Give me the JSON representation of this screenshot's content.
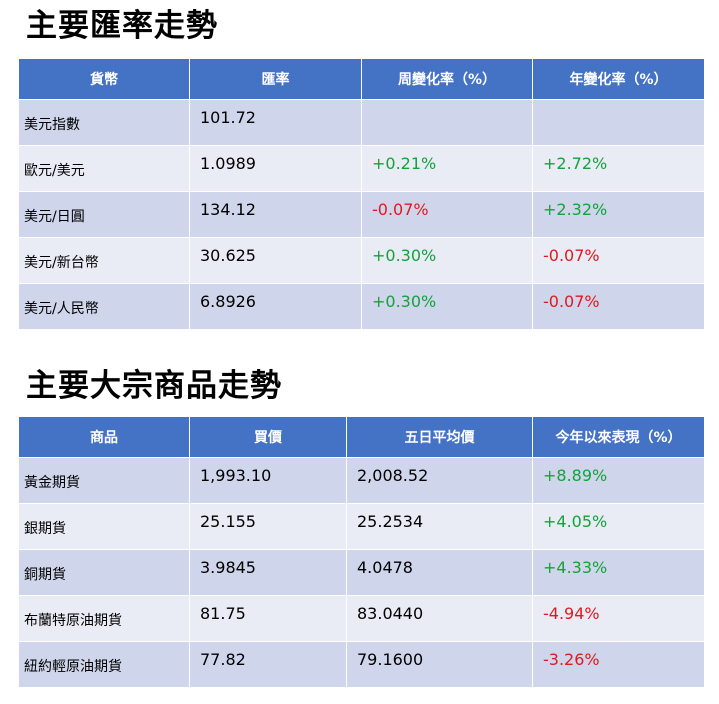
{
  "fx": {
    "title": "主要匯率走勢",
    "headers": [
      "貨幣",
      "匯率",
      "周變化率（%）",
      "年變化率（%）"
    ],
    "rows": [
      {
        "name": "美元指數",
        "rate": "101.72",
        "weekly": "",
        "yearly": ""
      },
      {
        "name": "歐元/美元",
        "rate": "1.0989",
        "weekly": "+0.21%",
        "yearly": "+2.72%"
      },
      {
        "name": "美元/日圓",
        "rate": "134.12",
        "weekly": "-0.07%",
        "yearly": "+2.32%"
      },
      {
        "name": "美元/新台幣",
        "rate": "30.625",
        "weekly": "+0.30%",
        "yearly": "-0.07%"
      },
      {
        "name": "美元/人民幣",
        "rate": "6.8926",
        "weekly": "+0.30%",
        "yearly": "-0.07%"
      }
    ]
  },
  "commodities": {
    "title": "主要大宗商品走勢",
    "headers": [
      "商品",
      "買價",
      "五日平均價",
      "今年以來表現（%）"
    ],
    "rows": [
      {
        "name": "黃金期貨",
        "price": "1,993.10",
        "avg5": "2,008.52",
        "ytd": "+8.89%"
      },
      {
        "name": "銀期貨",
        "price": "25.155",
        "avg5": "25.2534",
        "ytd": "+4.05%"
      },
      {
        "name": "銅期貨",
        "price": "3.9845",
        "avg5": "4.0478",
        "ytd": "+4.33%"
      },
      {
        "name": "布蘭特原油期貨",
        "price": "81.75",
        "avg5": "83.0440",
        "ytd": "-4.94%"
      },
      {
        "name": "紐約輕原油期貨",
        "price": "77.82",
        "avg5": "79.1600",
        "ytd": "-3.26%"
      }
    ]
  },
  "colors": {
    "header_bg": "#4472C4",
    "positive": "#12A33B",
    "negative": "#E0191E"
  }
}
